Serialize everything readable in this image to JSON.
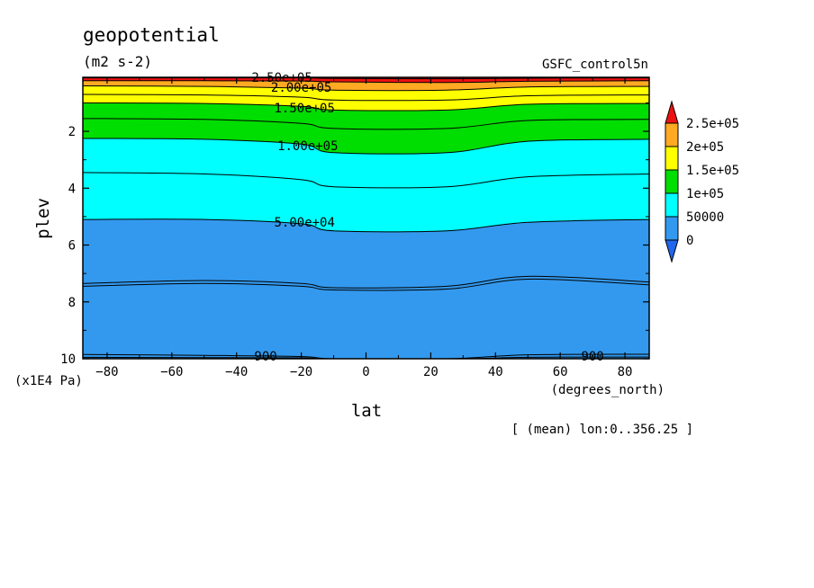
{
  "chart_data": {
    "type": "contour",
    "title": "geopotential",
    "units": "(m2 s-2)",
    "experiment": "GSFC_control5n",
    "xlabel": "lat",
    "xunits": "(degrees_north)",
    "ylabel": "plev",
    "yunits": "(x1E4 Pa)",
    "note": "[ (mean) lon:0..356.25 ]",
    "xlim": [
      -87.5,
      87.5
    ],
    "ylim": [
      10,
      0.1
    ],
    "x_ticks": [
      -80,
      -60,
      -40,
      -20,
      0,
      20,
      40,
      60,
      80
    ],
    "y_ticks": [
      2,
      4,
      6,
      8,
      10
    ],
    "colorbar": {
      "levels": [
        0,
        50000,
        100000,
        150000,
        200000,
        250000
      ],
      "labels": [
        "0",
        "50000",
        "1e+05",
        "1.5e+05",
        "2e+05",
        "2.5e+05"
      ],
      "colors": [
        "#3399ee",
        "#00ffff",
        "#00dd00",
        "#ffff00",
        "#ffaa22"
      ],
      "under_color": "#2266ee",
      "over_color": "#ee1111"
    },
    "contour_labels": [
      {
        "text": "2.50e+05",
        "x": -26,
        "y": 0.1
      },
      {
        "text": "2.00e+05",
        "x": -20,
        "y": 0.45
      },
      {
        "text": "1.50e+05",
        "x": -19,
        "y": 1.18
      },
      {
        "text": "1.00e+05",
        "x": -18,
        "y": 2.5
      },
      {
        "text": "5.00e+04",
        "x": -19,
        "y": 5.2
      },
      {
        "text": "900",
        "x": -31,
        "y": 9.9
      },
      {
        "text": "900",
        "x": 70,
        "y": 9.9
      }
    ],
    "band_lines": [
      {
        "level": 250000,
        "color": "#ee1111",
        "y": [
          0.12,
          0.12,
          0.12,
          0.14,
          0.15,
          0.13,
          0.12
        ]
      },
      {
        "level": 225000,
        "color": "#ffaa22",
        "y": [
          0.22,
          0.22,
          0.23,
          0.26,
          0.28,
          0.24,
          0.22
        ]
      },
      {
        "level": 200000,
        "color": "#ffff00",
        "y": [
          0.4,
          0.42,
          0.48,
          0.55,
          0.55,
          0.44,
          0.42
        ]
      },
      {
        "level": 175000,
        "color": "#ffff00",
        "y": [
          0.7,
          0.72,
          0.8,
          0.9,
          0.9,
          0.75,
          0.72
        ]
      },
      {
        "level": 150000,
        "color": "#00dd00",
        "y": [
          1.0,
          1.02,
          1.12,
          1.25,
          1.25,
          1.05,
          1.02
        ]
      },
      {
        "level": 125000,
        "color": "#00dd00",
        "y": [
          1.55,
          1.58,
          1.72,
          1.9,
          1.9,
          1.62,
          1.58
        ]
      },
      {
        "level": 100000,
        "color": "#00ffff",
        "y": [
          2.25,
          2.28,
          2.45,
          2.75,
          2.75,
          2.35,
          2.28
        ]
      },
      {
        "level": 75000,
        "color": "#00ffff",
        "y": [
          3.45,
          3.5,
          3.7,
          3.95,
          3.95,
          3.6,
          3.5
        ]
      },
      {
        "level": 50000,
        "color": "#3399ee",
        "y": [
          5.1,
          5.1,
          5.25,
          5.5,
          5.5,
          5.2,
          5.1
        ]
      },
      {
        "level": 25000,
        "color": "#3399ee",
        "y": [
          7.35,
          7.25,
          7.35,
          7.5,
          7.45,
          7.1,
          7.3
        ]
      },
      {
        "level": 0,
        "color": "#3399ee",
        "y": [
          9.85,
          9.88,
          9.92,
          10.0,
          10.0,
          9.86,
          9.84
        ]
      }
    ],
    "band_x": [
      -87.5,
      -50,
      -20,
      -10,
      25,
      50,
      87.5
    ]
  }
}
